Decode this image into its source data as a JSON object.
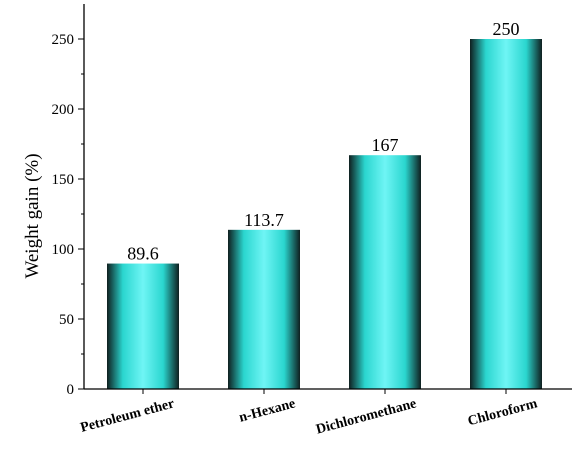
{
  "chart_data": {
    "type": "bar",
    "categories": [
      "Petroleum ether",
      "n-Hexane",
      "Dichloromethane",
      "Chloroform"
    ],
    "values": [
      89.6,
      113.7,
      167,
      250
    ],
    "data_labels": [
      "89.6",
      "113.7",
      "167",
      "250"
    ],
    "title": "",
    "xlabel": "",
    "ylabel": "Weight gain (%)",
    "ylim": [
      0,
      275
    ],
    "yticks": [
      0,
      50,
      100,
      150,
      200,
      250
    ],
    "grid": false,
    "legend": "none",
    "colors": {
      "bar_edge": "#0f1f1f",
      "bar_mid": "#2ad6cf",
      "bar_center": "#6ff5f5",
      "axis": "#000000"
    }
  }
}
